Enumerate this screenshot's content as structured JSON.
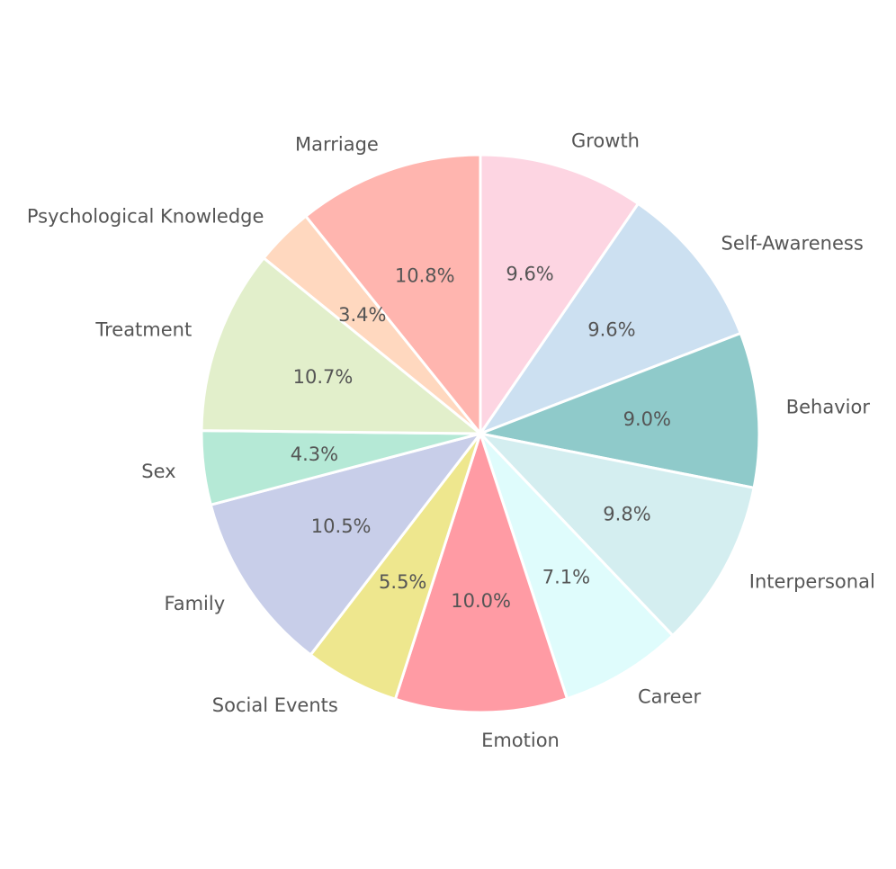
{
  "chart_data": {
    "type": "pie",
    "title": "",
    "start_angle_deg": 90,
    "direction": "clockwise",
    "slice_edge_color": "#ffffff",
    "label_color": "#555555",
    "slices": [
      {
        "label": "Growth",
        "value": 9.6,
        "pct_text": "9.6%",
        "color": "#FDD5E2"
      },
      {
        "label": "Self-Awareness",
        "value": 9.6,
        "pct_text": "9.6%",
        "color": "#CCE0F1"
      },
      {
        "label": "Behavior",
        "value": 9.0,
        "pct_text": "9.0%",
        "color": "#8FCACA"
      },
      {
        "label": "Interpersonal",
        "value": 9.8,
        "pct_text": "9.8%",
        "color": "#D4EEF0"
      },
      {
        "label": "Career",
        "value": 7.1,
        "pct_text": "7.1%",
        "color": "#DFFCFC"
      },
      {
        "label": "Emotion",
        "value": 10.0,
        "pct_text": "10.0%",
        "color": "#FF9BA4"
      },
      {
        "label": "Social Events",
        "value": 5.5,
        "pct_text": "5.5%",
        "color": "#EEE78E"
      },
      {
        "label": "Family",
        "value": 10.5,
        "pct_text": "10.5%",
        "color": "#C8CEE9"
      },
      {
        "label": "Sex",
        "value": 4.3,
        "pct_text": "4.3%",
        "color": "#B5E9D6"
      },
      {
        "label": "Treatment",
        "value": 10.7,
        "pct_text": "10.7%",
        "color": "#E2EFCB"
      },
      {
        "label": "Psychological Knowledge",
        "value": 3.4,
        "pct_text": "3.4%",
        "color": "#FFD8BF"
      },
      {
        "label": "Marriage",
        "value": 10.8,
        "pct_text": "10.8%",
        "color": "#FFB5AF"
      }
    ]
  }
}
